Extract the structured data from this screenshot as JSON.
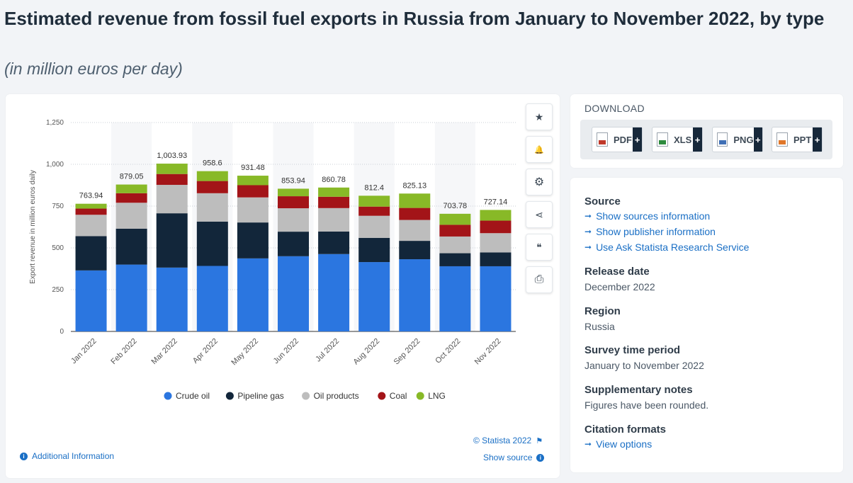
{
  "header": {
    "title": "Estimated revenue from fossil fuel exports in Russia from January to November 2022, by type",
    "subtitle": "(in million euros per day)"
  },
  "chart_data": {
    "type": "bar",
    "stacked": true,
    "categories": [
      "Jan 2022",
      "Feb 2022",
      "Mar 2022",
      "Apr 2022",
      "May 2022",
      "Jun 2022",
      "Jul 2022",
      "Aug 2022",
      "Sep 2022",
      "Oct 2022",
      "Nov 2022"
    ],
    "totals_labels": [
      "763.94",
      "879.05",
      "1,003.93",
      "958.6",
      "931.48",
      "853.94",
      "860.78",
      "812.4",
      "825.13",
      "703.78",
      "727.14"
    ],
    "series": [
      {
        "name": "Crude oil",
        "color": "#2b76e0",
        "values": [
          365,
          400,
          382,
          392,
          437,
          450,
          463,
          415,
          432,
          390,
          390
        ]
      },
      {
        "name": "Pipeline gas",
        "color": "#12263a",
        "values": [
          205,
          215,
          325,
          265,
          215,
          147,
          135,
          145,
          110,
          78,
          83
        ]
      },
      {
        "name": "Oil products",
        "color": "#bdbdbd",
        "values": [
          128,
          155,
          170,
          170,
          150,
          140,
          140,
          132,
          125,
          100,
          115
        ]
      },
      {
        "name": "Coal",
        "color": "#a31418",
        "values": [
          37,
          57,
          65,
          73,
          73,
          72,
          68,
          55,
          72,
          70,
          75
        ]
      },
      {
        "name": "LNG",
        "color": "#88b927",
        "values": [
          29,
          52,
          62,
          59,
          57,
          45,
          55,
          65,
          86,
          66,
          64
        ]
      }
    ],
    "ylabel": "Export revenue in million euros daily",
    "xlabel": "",
    "ylim": [
      0,
      1250
    ],
    "yticks": [
      0,
      250,
      500,
      750,
      1000,
      1250
    ],
    "ytick_labels": [
      "0",
      "250",
      "500",
      "750",
      "1,000",
      "1,250"
    ],
    "grid": true,
    "legend_position": "bottom"
  },
  "chart_footer": {
    "copyright": "© Statista 2022",
    "show_source": "Show source",
    "additional_info": "Additional Information"
  },
  "toolbar": {
    "items": [
      {
        "icon": "star-icon",
        "glyph": "★"
      },
      {
        "icon": "bell-icon",
        "glyph": "🔔"
      },
      {
        "icon": "gear-icon",
        "glyph": "⚙"
      },
      {
        "icon": "share-icon",
        "glyph": "⋖"
      },
      {
        "icon": "quote-icon",
        "glyph": "❝"
      },
      {
        "icon": "print-icon",
        "glyph": "⎙"
      }
    ]
  },
  "download": {
    "heading": "DOWNLOAD",
    "buttons": [
      {
        "label": "PDF",
        "color": "#c0392b"
      },
      {
        "label": "XLS",
        "color": "#2e8b3e"
      },
      {
        "label": "PNG",
        "color": "#3f6fb5"
      },
      {
        "label": "PPT",
        "color": "#e0772a"
      }
    ],
    "plus": "+"
  },
  "info": {
    "source_heading": "Source",
    "source_links": [
      "Show sources information",
      "Show publisher information",
      "Use Ask Statista Research Service"
    ],
    "release_heading": "Release date",
    "release_value": "December 2022",
    "region_heading": "Region",
    "region_value": "Russia",
    "survey_heading": "Survey time period",
    "survey_value": "January to November 2022",
    "supp_heading": "Supplementary notes",
    "supp_value": "Figures have been rounded.",
    "citation_heading": "Citation formats",
    "citation_link": "View options"
  }
}
